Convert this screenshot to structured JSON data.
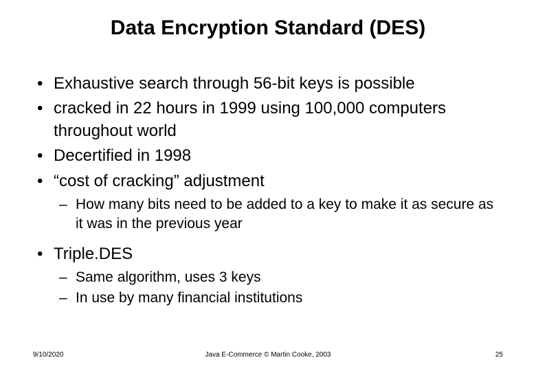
{
  "title": "Data Encryption Standard (DES)",
  "bullets": {
    "b1": "Exhaustive search through 56-bit keys is possible",
    "b2": "cracked in 22 hours in 1999 using 100,000 computers throughout world",
    "b3": "Decertified in 1998",
    "b4": "“cost of cracking” adjustment",
    "b4_1": "How many bits need to be added to a key to make it as secure as it was in the previous year",
    "b5": "Triple.DES",
    "b5_1": "Same algorithm, uses 3 keys",
    "b5_2": "In use by many financial institutions"
  },
  "footer": {
    "date": "9/10/2020",
    "center": "Java E-Commerce © Martin Cooke, 2003",
    "page": "25"
  },
  "style": {
    "background_color": "#ffffff",
    "text_color": "#000000",
    "title_fontsize": 30,
    "title_fontweight": "bold",
    "body_fontsize_l1": 24,
    "body_fontsize_l2": 21,
    "footer_fontsize": 10,
    "font_family": "Arial"
  }
}
